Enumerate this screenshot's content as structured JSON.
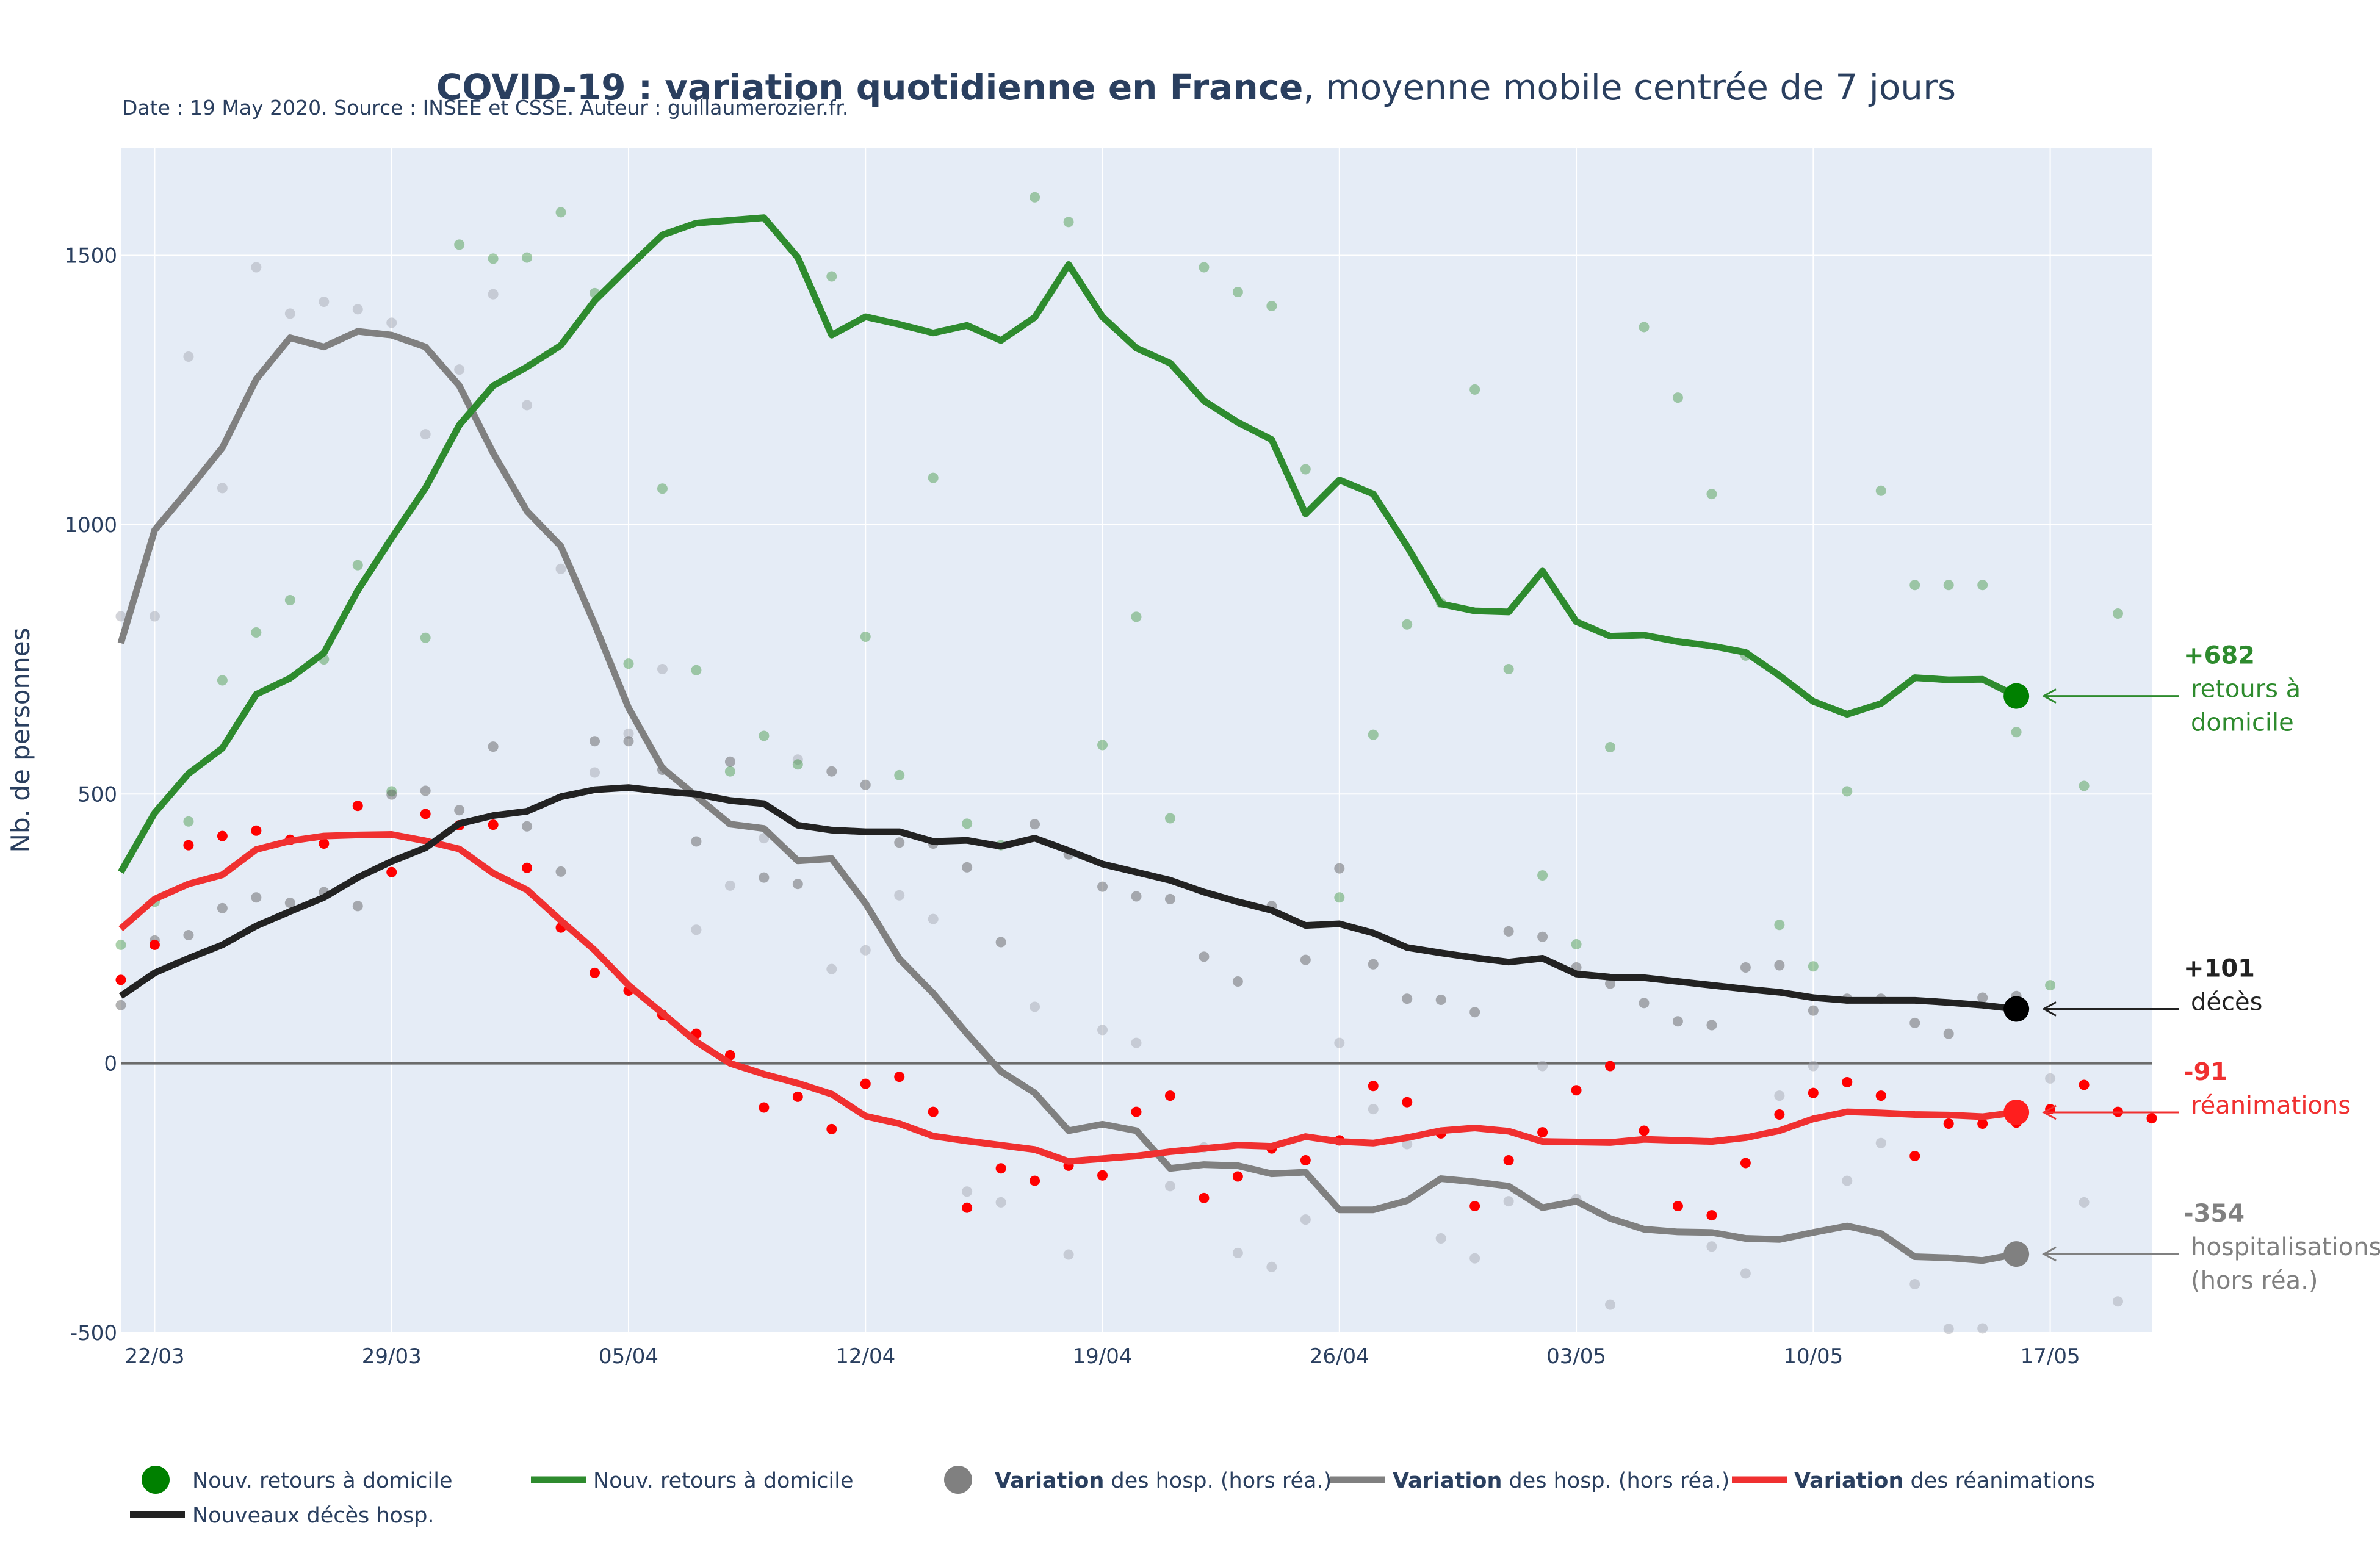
{
  "header": {
    "title_bold": "COVID-19 : variation quotidienne en France",
    "title_rest": ", moyenne mobile centrée de 7 jours",
    "subtitle": "Date : 19 May 2020. Source : INSEE et CSSE. Auteur : guillaumerozier.fr."
  },
  "colors": {
    "green": "#2e8b2e",
    "green_marker": "#008000",
    "black": "#222222",
    "gray": "#808080",
    "red": "#f03030",
    "plot_bg": "#e5ecf6",
    "grid": "#ffffff"
  },
  "chart_data": {
    "type": "line",
    "ylabel": "Nb. de personnes",
    "ylim": [
      -500,
      1700
    ],
    "yticks": [
      -500,
      0,
      500,
      1000,
      1500
    ],
    "xlim": [
      "2020-03-21",
      "2020-05-20"
    ],
    "xticks": [
      {
        "date": "2020-03-22",
        "label": "22/03"
      },
      {
        "date": "2020-03-29",
        "label": "29/03"
      },
      {
        "date": "2020-04-05",
        "label": "05/04"
      },
      {
        "date": "2020-04-12",
        "label": "12/04"
      },
      {
        "date": "2020-04-19",
        "label": "19/04"
      },
      {
        "date": "2020-04-26",
        "label": "26/04"
      },
      {
        "date": "2020-05-03",
        "label": "03/05"
      },
      {
        "date": "2020-05-10",
        "label": "10/05"
      },
      {
        "date": "2020-05-17",
        "label": "17/05"
      }
    ],
    "x_start": "2020-03-21",
    "series": [
      {
        "key": "green_line",
        "name": "Nouv. retours à domicile",
        "kind": "line",
        "values": [
          355,
          465,
          538,
          585,
          685,
          715,
          762,
          878,
          975,
          1068,
          1185,
          1258,
          1293,
          1333,
          1416,
          1478,
          1538,
          1560,
          1565,
          1570,
          1496,
          1352,
          1386,
          1372,
          1356,
          1370,
          1342,
          1385,
          1483,
          1386,
          1328,
          1300,
          1230,
          1190,
          1158,
          1020,
          1083,
          1057,
          960,
          853,
          840,
          838,
          914,
          820,
          793,
          795,
          783,
          775,
          763,
          720,
          672,
          648,
          668,
          716,
          712,
          713,
          682
        ]
      },
      {
        "key": "gray_line",
        "name": "Variation des hosp. (hors réa.)",
        "kind": "line",
        "values": [
          780,
          990,
          1065,
          1143,
          1270,
          1347,
          1330,
          1359,
          1352,
          1330,
          1258,
          1133,
          1025,
          960,
          815,
          660,
          548,
          496,
          444,
          436,
          376,
          380,
          297,
          194,
          130,
          55,
          -15,
          -55,
          -125,
          -113,
          -125,
          -195,
          -188,
          -190,
          -205,
          -202,
          -272,
          -272,
          -255,
          -214,
          -220,
          -228,
          -268,
          -256,
          -288,
          -308,
          -313,
          -314,
          -325,
          -327,
          -314,
          -302,
          -316,
          -359,
          -361,
          -366,
          -354
        ]
      },
      {
        "key": "red_line",
        "name": "Variation des réanimations",
        "kind": "line",
        "values": [
          250,
          305,
          333,
          350,
          397,
          413,
          422,
          424,
          425,
          413,
          398,
          353,
          322,
          265,
          210,
          145,
          93,
          40,
          0,
          -20,
          -37,
          -57,
          -98,
          -112,
          -135,
          -144,
          -152,
          -160,
          -182,
          -177,
          -172,
          -164,
          -158,
          -152,
          -154,
          -136,
          -145,
          -148,
          -138,
          -125,
          -120,
          -126,
          -145,
          -146,
          -147,
          -141,
          -143,
          -145,
          -138,
          -125,
          -103,
          -90,
          -92,
          -95,
          -96,
          -99,
          -91
        ]
      },
      {
        "key": "black_line",
        "name": "Nouveaux décès hosp.",
        "kind": "line",
        "values": [
          125,
          168,
          195,
          220,
          255,
          282,
          308,
          345,
          375,
          400,
          445,
          460,
          468,
          495,
          508,
          512,
          505,
          500,
          488,
          482,
          442,
          433,
          430,
          430,
          412,
          414,
          403,
          418,
          395,
          370,
          355,
          340,
          318,
          300,
          284,
          256,
          259,
          242,
          215,
          205,
          196,
          188,
          195,
          166,
          160,
          159,
          152,
          145,
          138,
          132,
          122,
          117,
          117,
          117,
          113,
          108,
          101
        ]
      },
      {
        "key": "green_dots",
        "name": "Nouv. retours à domicile",
        "kind": "points",
        "x_offset": 0,
        "values": [
          220,
          300,
          449,
          711,
          800,
          860,
          750,
          925,
          505,
          790,
          1520,
          1494,
          1496,
          1580,
          1430,
          742,
          1067,
          730,
          542,
          608,
          555,
          1461,
          792,
          535,
          1087,
          445,
          405,
          1608,
          1562,
          591,
          829,
          455,
          1478,
          1432,
          1406,
          1103,
          308,
          610,
          815,
          855,
          1251,
          732,
          349,
          221,
          587,
          1367,
          1236,
          1057,
          757,
          257,
          180,
          505,
          1063,
          888,
          888,
          888,
          615,
          145,
          515,
          835
        ]
      },
      {
        "key": "gray_dots",
        "name": "Variation des hosp. (hors réa.)",
        "kind": "points",
        "x_offset": 0,
        "values": [
          830,
          830,
          1312,
          1068,
          1478,
          1392,
          1414,
          1400,
          1375,
          1168,
          1288,
          1428,
          1222,
          918,
          540,
          612,
          732,
          248,
          330,
          418,
          564,
          175,
          210,
          312,
          268,
          -238,
          -258,
          105,
          -355,
          62,
          38,
          -228,
          -156,
          -352,
          -378,
          -290,
          38,
          -85,
          -150,
          -325,
          -362,
          -256,
          -5,
          -252,
          -448,
          -502,
          -512,
          -340,
          -390,
          -60,
          -5,
          -218,
          -148,
          -410,
          -493,
          -492,
          -502,
          -28,
          -258,
          -442
        ]
      },
      {
        "key": "black_dots",
        "name": "Nouveaux décès hosp.",
        "kind": "points",
        "x_offset": -1,
        "values": [
          75,
          108,
          228,
          238,
          288,
          308,
          298,
          318,
          292,
          499,
          506,
          470,
          588,
          440,
          356,
          598,
          598,
          545,
          412,
          560,
          345,
          333,
          542,
          517,
          410,
          408,
          364,
          225,
          444,
          388,
          328,
          310,
          305,
          198,
          152,
          292,
          192,
          362,
          184,
          120,
          118,
          95,
          245,
          235,
          178,
          148,
          112,
          78,
          71,
          178,
          182,
          98,
          120,
          120,
          75,
          55,
          122,
          125
        ]
      },
      {
        "key": "red_dots",
        "name": "Variation des réanimations",
        "kind": "points",
        "x_offset": 0,
        "values": [
          155,
          220,
          405,
          422,
          432,
          415,
          408,
          478,
          355,
          463,
          442,
          443,
          363,
          252,
          168,
          135,
          90,
          55,
          15,
          -82,
          -62,
          -122,
          -38,
          -25,
          -90,
          -268,
          -195,
          -218,
          -190,
          -208,
          -90,
          -60,
          -250,
          -210,
          -158,
          -180,
          -143,
          -42,
          -72,
          -130,
          -265,
          -180,
          -128,
          -50,
          -5,
          -125,
          -265,
          -282,
          -185,
          -95,
          -55,
          -35,
          -60,
          -172,
          -112,
          -112,
          -110,
          -85,
          -40,
          -90,
          -102
        ]
      }
    ],
    "annotations": [
      {
        "key": "green",
        "value_label": "+682",
        "text_lines": [
          "retours à",
          "domicile"
        ],
        "y": 682
      },
      {
        "key": "black",
        "value_label": "+101",
        "text_lines": [
          "décès"
        ],
        "y": 101
      },
      {
        "key": "red",
        "value_label": "-91",
        "text_lines": [
          "réanimations"
        ],
        "y": -91
      },
      {
        "key": "gray",
        "value_label": "-354",
        "text_lines": [
          "hospitalisations",
          "(hors réa.)"
        ],
        "y": -354
      }
    ]
  },
  "legend": {
    "items": [
      {
        "kind": "marker",
        "color_key": "green_marker",
        "bold": "",
        "text": "Nouv. retours à domicile"
      },
      {
        "kind": "line",
        "color_key": "green",
        "bold": "",
        "text": "Nouv. retours à domicile"
      },
      {
        "kind": "marker",
        "color_key": "gray",
        "bold": "Variation",
        "text": " des hosp. (hors réa.)"
      },
      {
        "kind": "line",
        "color_key": "gray",
        "bold": "Variation",
        "text": " des hosp. (hors réa.)"
      },
      {
        "kind": "line",
        "color_key": "red",
        "bold": "Variation",
        "text": " des réanimations"
      },
      {
        "kind": "line",
        "color_key": "black",
        "bold": "",
        "text": "Nouveaux décès hosp."
      }
    ]
  }
}
